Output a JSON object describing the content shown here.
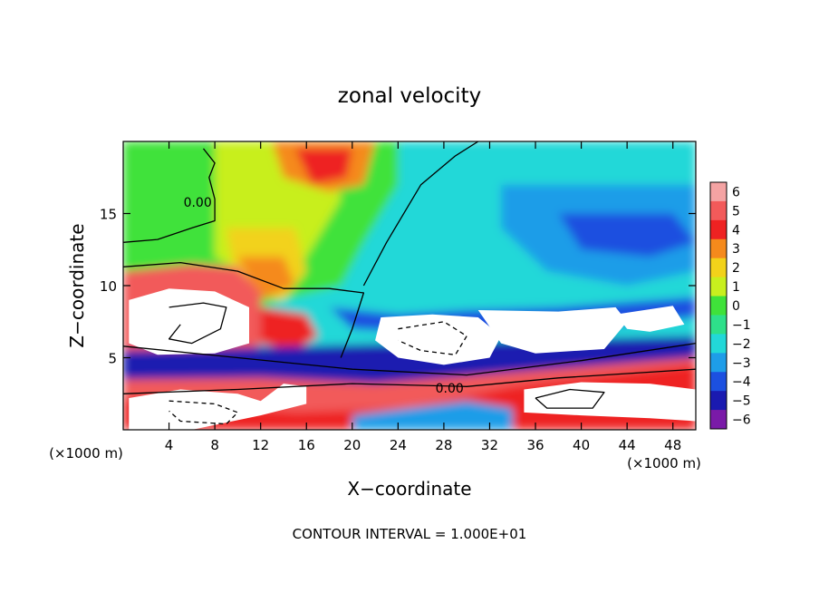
{
  "chart_data": {
    "type": "heatmap",
    "title": "zonal velocity",
    "xlabel": "X−coordinate",
    "ylabel": "Z−coordinate",
    "x_unit": "(×1000 m)",
    "z_unit": "(×1000 m)",
    "footer": "CONTOUR INTERVAL = 1.000E+01",
    "xlim": [
      0,
      50
    ],
    "ylim": [
      0,
      20
    ],
    "x_ticks": [
      4,
      8,
      12,
      16,
      20,
      24,
      28,
      32,
      36,
      40,
      44,
      48
    ],
    "y_ticks": [
      5,
      10,
      15
    ],
    "colorbar": {
      "levels": [
        6,
        5,
        4,
        3,
        2,
        1,
        0,
        -1,
        -2,
        -3,
        -4,
        -5,
        -6
      ],
      "labels": [
        "6",
        "5",
        "4",
        "3",
        "2",
        "1",
        "0",
        "−1",
        "−2",
        "−3",
        "−4",
        "−5",
        "−6"
      ],
      "colors": [
        "#f4a3a3",
        "#f25a5a",
        "#ee2222",
        "#f58a1c",
        "#f2d21a",
        "#c8ef1e",
        "#3fe23a",
        "#2ee08a",
        "#22d8d8",
        "#1e9de8",
        "#1c50e0",
        "#1a1ab0",
        "#7a1aa8"
      ]
    },
    "contour_labels": [
      {
        "text": "0.00",
        "x": 6.5,
        "z": 15.8
      },
      {
        "text": "0.00",
        "x": 28.5,
        "z": 2.9
      }
    ],
    "regions": [
      {
        "level": -2,
        "points": [
          [
            0,
            20
          ],
          [
            50,
            20
          ],
          [
            50,
            0
          ],
          [
            0,
            0
          ]
        ]
      },
      {
        "level": 0,
        "points": [
          [
            0,
            20
          ],
          [
            24,
            20
          ],
          [
            24,
            17
          ],
          [
            21,
            13
          ],
          [
            19,
            10
          ],
          [
            14,
            9
          ],
          [
            10,
            8
          ],
          [
            6,
            9
          ],
          [
            0,
            11
          ]
        ]
      },
      {
        "level": 0,
        "points": [
          [
            0,
            9.5
          ],
          [
            0,
            19.5
          ],
          [
            5,
            18
          ],
          [
            8,
            17.5
          ],
          [
            7,
            14
          ],
          [
            3,
            13
          ],
          [
            0,
            13
          ]
        ]
      },
      {
        "level": 1,
        "points": [
          [
            8,
            20
          ],
          [
            18,
            20
          ],
          [
            19,
            16
          ],
          [
            16,
            12
          ],
          [
            12,
            10
          ],
          [
            8,
            12
          ]
        ]
      },
      {
        "level": -3,
        "points": [
          [
            33,
            17
          ],
          [
            50,
            17
          ],
          [
            50,
            11
          ],
          [
            44,
            10
          ],
          [
            37,
            11
          ],
          [
            33,
            14
          ]
        ]
      },
      {
        "level": -4,
        "points": [
          [
            38,
            15
          ],
          [
            48,
            15
          ],
          [
            50,
            13
          ],
          [
            46,
            12
          ],
          [
            40,
            12.5
          ]
        ]
      },
      {
        "level": 2,
        "points": [
          [
            9,
            14
          ],
          [
            15,
            14
          ],
          [
            16,
            11
          ],
          [
            14,
            9
          ],
          [
            10,
            9.5
          ]
        ]
      },
      {
        "level": 3,
        "points": [
          [
            10,
            12
          ],
          [
            14,
            12
          ],
          [
            15,
            10
          ],
          [
            12,
            9
          ]
        ]
      },
      {
        "level": 3,
        "points": [
          [
            13,
            20
          ],
          [
            22,
            20
          ],
          [
            21,
            17
          ],
          [
            18,
            16.5
          ],
          [
            14,
            17.5
          ]
        ]
      },
      {
        "level": 4,
        "points": [
          [
            15,
            19.5
          ],
          [
            20,
            19.5
          ],
          [
            19.5,
            17.5
          ],
          [
            16.5,
            17
          ]
        ]
      },
      {
        "level": 5,
        "points": [
          [
            0,
            11
          ],
          [
            6,
            11.5
          ],
          [
            10,
            11.3
          ],
          [
            12,
            9.5
          ],
          [
            12,
            6
          ],
          [
            10,
            4.5
          ],
          [
            4,
            4.5
          ],
          [
            0,
            5
          ]
        ]
      },
      {
        "level": 4,
        "points": [
          [
            12,
            8.5
          ],
          [
            16,
            8
          ],
          [
            17,
            6.5
          ],
          [
            15,
            5.5
          ],
          [
            12,
            6
          ]
        ]
      },
      {
        "level": -5,
        "points": [
          [
            0,
            5.5
          ],
          [
            50,
            6.5
          ],
          [
            50,
            4
          ],
          [
            35,
            3.8
          ],
          [
            25,
            3.2
          ],
          [
            15,
            2.2
          ],
          [
            0,
            2.4
          ]
        ]
      },
      {
        "level": -4,
        "points": [
          [
            18,
            8.5
          ],
          [
            24,
            8
          ],
          [
            30,
            8.3
          ],
          [
            38,
            8.5
          ],
          [
            50,
            9.2
          ],
          [
            50,
            7.8
          ],
          [
            40,
            7
          ],
          [
            30,
            6.5
          ],
          [
            20,
            7
          ]
        ]
      },
      {
        "level": 5,
        "points": [
          [
            0,
            3.5
          ],
          [
            12,
            3.6
          ],
          [
            22,
            3.2
          ],
          [
            34,
            4
          ],
          [
            50,
            5
          ],
          [
            50,
            0
          ],
          [
            0,
            0
          ]
        ]
      },
      {
        "level": 4,
        "points": [
          [
            0,
            2.2
          ],
          [
            15,
            1.2
          ],
          [
            25,
            1.5
          ],
          [
            34,
            3
          ],
          [
            50,
            4.5
          ],
          [
            50,
            0
          ],
          [
            0,
            0
          ]
        ]
      },
      {
        "level": -3,
        "points": [
          [
            20,
            1
          ],
          [
            30,
            2
          ],
          [
            34,
            1.5
          ],
          [
            34,
            0
          ],
          [
            20,
            0
          ]
        ]
      }
    ],
    "blanks": [
      {
        "points": [
          [
            0.5,
            9
          ],
          [
            4,
            9.8
          ],
          [
            8,
            9.6
          ],
          [
            11,
            8.5
          ],
          [
            11,
            6
          ],
          [
            8,
            5.3
          ],
          [
            3,
            5.2
          ],
          [
            0.5,
            6
          ]
        ]
      },
      {
        "points": [
          [
            22.5,
            7.8
          ],
          [
            27,
            8
          ],
          [
            31,
            7.8
          ],
          [
            33,
            6.5
          ],
          [
            32,
            5
          ],
          [
            28,
            4.5
          ],
          [
            24,
            5
          ],
          [
            22,
            6.2
          ]
        ]
      },
      {
        "points": [
          [
            31,
            8.3
          ],
          [
            38,
            8.2
          ],
          [
            43,
            8.5
          ],
          [
            44,
            7.5
          ],
          [
            42,
            5.6
          ],
          [
            36,
            5.3
          ],
          [
            33,
            6
          ]
        ]
      },
      {
        "points": [
          [
            43,
            8
          ],
          [
            48,
            8.6
          ],
          [
            49,
            7.3
          ],
          [
            46,
            6.8
          ],
          [
            44,
            7
          ]
        ]
      },
      {
        "points": [
          [
            0.5,
            2.2
          ],
          [
            5,
            2.8
          ],
          [
            10,
            2.5
          ],
          [
            12,
            2
          ],
          [
            14,
            3.2
          ],
          [
            16,
            3
          ],
          [
            16,
            1.8
          ],
          [
            12,
            1
          ],
          [
            6,
            0
          ],
          [
            0.5,
            0
          ]
        ]
      },
      {
        "points": [
          [
            35,
            2.8
          ],
          [
            40,
            3.3
          ],
          [
            46,
            3.2
          ],
          [
            50,
            2.8
          ],
          [
            50,
            0.6
          ],
          [
            46,
            0.8
          ],
          [
            40,
            1
          ],
          [
            35,
            1.2
          ]
        ]
      }
    ],
    "contours": [
      {
        "style": "solid",
        "points": [
          [
            0,
            13
          ],
          [
            3,
            13.2
          ],
          [
            6,
            14
          ],
          [
            8,
            14.5
          ],
          [
            8,
            16
          ],
          [
            7.5,
            17.5
          ],
          [
            8,
            18.5
          ],
          [
            7,
            19.5
          ]
        ]
      },
      {
        "style": "solid",
        "points": [
          [
            21,
            10
          ],
          [
            23,
            13
          ],
          [
            26,
            17
          ],
          [
            29,
            19
          ],
          [
            31,
            20
          ]
        ]
      },
      {
        "style": "solid",
        "points": [
          [
            0,
            11.3
          ],
          [
            5,
            11.6
          ],
          [
            10,
            11
          ],
          [
            14,
            9.8
          ],
          [
            18,
            9.8
          ],
          [
            21,
            9.5
          ],
          [
            20,
            7
          ],
          [
            19,
            5
          ]
        ]
      },
      {
        "style": "solid",
        "points": [
          [
            0,
            5.8
          ],
          [
            10,
            5
          ],
          [
            20,
            4.2
          ],
          [
            30,
            3.8
          ],
          [
            40,
            4.8
          ],
          [
            50,
            6
          ]
        ]
      },
      {
        "style": "solid",
        "points": [
          [
            0,
            2.5
          ],
          [
            10,
            2.8
          ],
          [
            20,
            3.2
          ],
          [
            30,
            3
          ],
          [
            38,
            3.6
          ],
          [
            50,
            4.2
          ]
        ]
      },
      {
        "style": "solid",
        "points": [
          [
            4,
            8.5
          ],
          [
            7,
            8.8
          ],
          [
            9,
            8.5
          ],
          [
            8.5,
            7
          ],
          [
            6,
            6
          ],
          [
            4,
            6.3
          ],
          [
            5,
            7.3
          ]
        ]
      },
      {
        "style": "solid",
        "points": [
          [
            36,
            2.2
          ],
          [
            39,
            2.8
          ],
          [
            42,
            2.6
          ],
          [
            41,
            1.5
          ],
          [
            37,
            1.5
          ],
          [
            36,
            2.2
          ]
        ]
      },
      {
        "style": "dashed",
        "points": [
          [
            24,
            7
          ],
          [
            28,
            7.5
          ],
          [
            30,
            6.5
          ],
          [
            29,
            5.2
          ],
          [
            26,
            5.5
          ],
          [
            24,
            6.2
          ]
        ]
      },
      {
        "style": "dashed",
        "points": [
          [
            4,
            2
          ],
          [
            8,
            1.8
          ],
          [
            10,
            1.2
          ],
          [
            9,
            0.4
          ],
          [
            5,
            0.6
          ],
          [
            4,
            1.3
          ]
        ]
      }
    ]
  }
}
